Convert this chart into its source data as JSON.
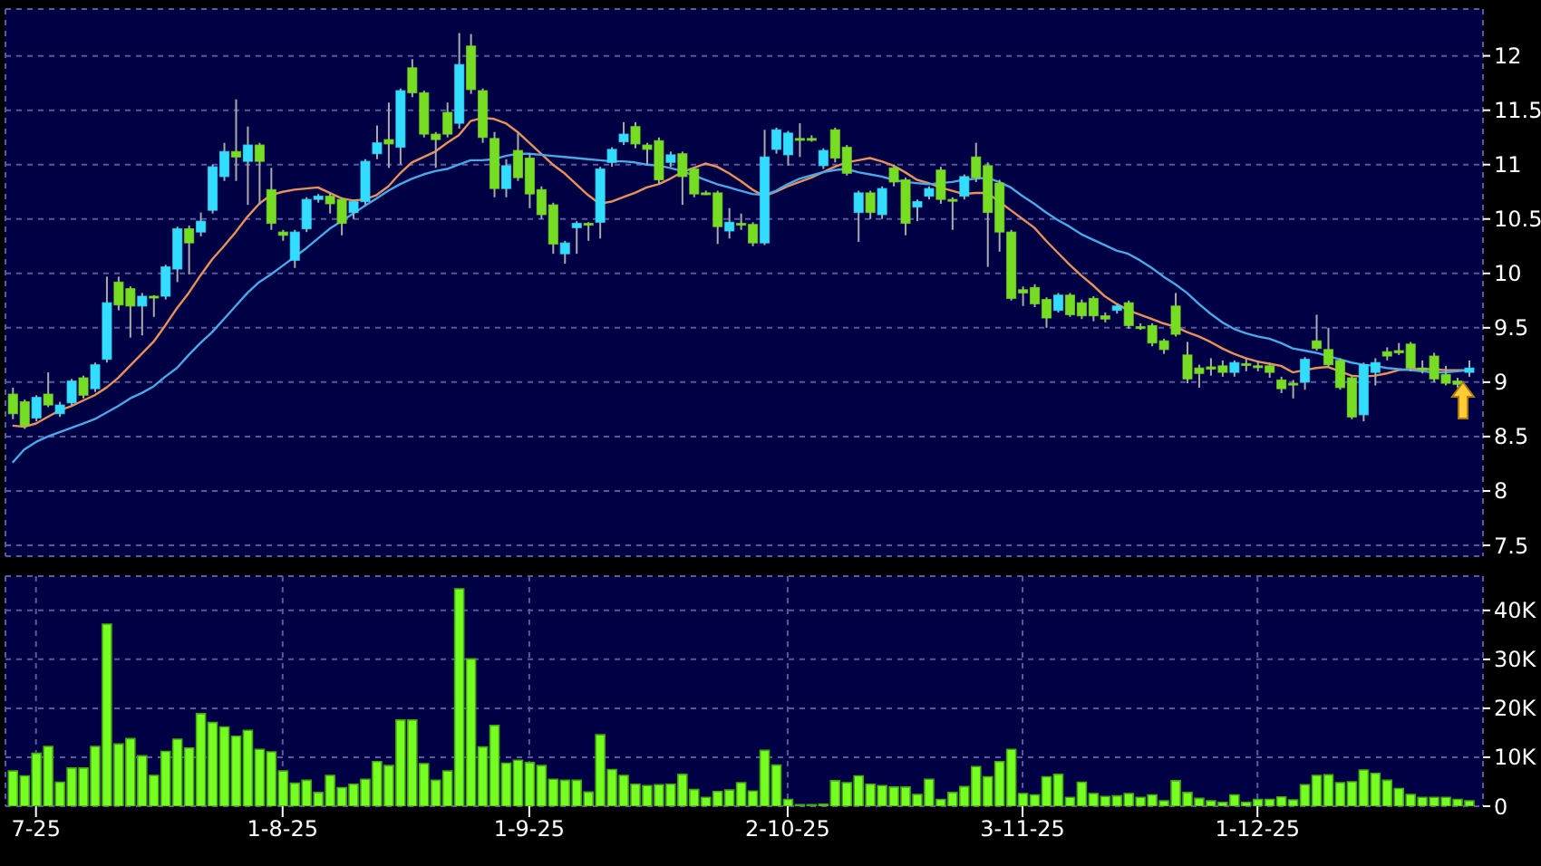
{
  "chart_data": [
    {
      "type": "candlestick",
      "categories": [
        null,
        null,
        null,
        null,
        null,
        null,
        null,
        null,
        null,
        null,
        null,
        null,
        null,
        null,
        null,
        null,
        null,
        null,
        null,
        null,
        null,
        null,
        null,
        null,
        null,
        null,
        null,
        null,
        null,
        null,
        null,
        null,
        null,
        null,
        null,
        null,
        null,
        null,
        null,
        null,
        null,
        null,
        null,
        null,
        null,
        null,
        null,
        null,
        null,
        null,
        null,
        null,
        null,
        null,
        null,
        null,
        null,
        null,
        null,
        null,
        null,
        null,
        null,
        null,
        null,
        null,
        null,
        null,
        null,
        null,
        null,
        null,
        null,
        null,
        null,
        null,
        null,
        null,
        null,
        null,
        null,
        null,
        null,
        null,
        null,
        null,
        null,
        null,
        null,
        null,
        null,
        null,
        null,
        null,
        null,
        null,
        null,
        null,
        null,
        null,
        null,
        null,
        null,
        null,
        null,
        null,
        null,
        null,
        null,
        null,
        null,
        null,
        null,
        null,
        null,
        null,
        null,
        null,
        null,
        null,
        null,
        null,
        null,
        null,
        null
      ],
      "ohlc": [
        [
          8.89,
          8.95,
          8.66,
          8.71
        ],
        [
          8.82,
          8.84,
          8.57,
          8.6
        ],
        [
          8.67,
          8.88,
          8.64,
          8.86
        ],
        [
          8.89,
          9.09,
          8.77,
          8.79
        ],
        [
          8.71,
          8.82,
          8.68,
          8.79
        ],
        [
          8.81,
          9.03,
          8.78,
          9.01
        ],
        [
          9.04,
          9.06,
          8.85,
          8.88
        ],
        [
          8.94,
          9.18,
          8.91,
          9.16
        ],
        [
          9.21,
          9.97,
          9.18,
          9.73
        ],
        [
          9.92,
          9.97,
          9.66,
          9.71
        ],
        [
          9.86,
          9.88,
          9.41,
          9.7
        ],
        [
          9.7,
          9.82,
          9.43,
          9.79
        ],
        [
          9.79,
          9.8,
          9.6,
          9.79
        ],
        [
          9.79,
          10.08,
          9.76,
          10.06
        ],
        [
          10.04,
          10.43,
          9.92,
          10.41
        ],
        [
          10.41,
          10.44,
          9.99,
          10.28
        ],
        [
          10.38,
          10.56,
          10.34,
          10.48
        ],
        [
          10.58,
          11.0,
          10.55,
          10.98
        ],
        [
          10.89,
          11.2,
          10.85,
          11.12
        ],
        [
          11.12,
          11.6,
          10.85,
          11.07
        ],
        [
          11.03,
          11.35,
          10.63,
          11.18
        ],
        [
          11.18,
          11.2,
          10.63,
          11.03
        ],
        [
          10.77,
          10.97,
          10.4,
          10.46
        ],
        [
          10.38,
          10.4,
          10.3,
          10.35
        ],
        [
          10.12,
          10.4,
          10.05,
          10.38
        ],
        [
          10.41,
          10.7,
          10.38,
          10.68
        ],
        [
          10.68,
          10.73,
          10.65,
          10.71
        ],
        [
          10.71,
          10.74,
          10.55,
          10.64
        ],
        [
          10.68,
          10.7,
          10.35,
          10.46
        ],
        [
          10.56,
          10.68,
          10.5,
          10.66
        ],
        [
          10.66,
          11.05,
          10.63,
          11.03
        ],
        [
          11.1,
          11.36,
          11.05,
          11.2
        ],
        [
          11.23,
          11.57,
          10.97,
          11.19
        ],
        [
          11.16,
          11.7,
          11.0,
          11.68
        ],
        [
          11.89,
          11.97,
          11.62,
          11.66
        ],
        [
          11.66,
          11.68,
          11.25,
          11.28
        ],
        [
          11.28,
          11.3,
          10.97,
          11.23
        ],
        [
          11.48,
          11.57,
          11.25,
          11.28
        ],
        [
          11.38,
          12.21,
          11.33,
          11.92
        ],
        [
          12.09,
          12.2,
          11.65,
          11.69
        ],
        [
          11.68,
          11.7,
          11.2,
          11.25
        ],
        [
          11.24,
          11.3,
          10.7,
          10.78
        ],
        [
          10.78,
          11.05,
          10.7,
          10.99
        ],
        [
          11.13,
          11.3,
          10.85,
          10.88
        ],
        [
          11.06,
          11.1,
          10.6,
          10.73
        ],
        [
          10.77,
          10.8,
          10.5,
          10.54
        ],
        [
          10.63,
          10.65,
          10.18,
          10.27
        ],
        [
          10.18,
          10.3,
          10.09,
          10.28
        ],
        [
          10.42,
          10.48,
          10.18,
          10.46
        ],
        [
          10.46,
          10.47,
          10.3,
          10.46
        ],
        [
          10.47,
          10.98,
          10.32,
          10.96
        ],
        [
          11.02,
          11.16,
          10.98,
          11.14
        ],
        [
          11.21,
          11.39,
          11.18,
          11.28
        ],
        [
          11.35,
          11.39,
          11.15,
          11.19
        ],
        [
          11.18,
          11.2,
          11.0,
          11.14
        ],
        [
          11.22,
          11.25,
          10.82,
          10.86
        ],
        [
          11.02,
          11.12,
          10.98,
          11.09
        ],
        [
          11.1,
          11.12,
          10.63,
          10.89
        ],
        [
          10.96,
          10.98,
          10.7,
          10.73
        ],
        [
          10.74,
          10.76,
          10.72,
          10.74
        ],
        [
          10.74,
          10.76,
          10.27,
          10.43
        ],
        [
          10.39,
          10.6,
          10.32,
          10.47
        ],
        [
          10.46,
          10.55,
          10.4,
          10.46
        ],
        [
          10.45,
          10.47,
          10.25,
          10.28
        ],
        [
          10.28,
          11.32,
          10.26,
          11.07
        ],
        [
          11.14,
          11.34,
          11.1,
          11.32
        ],
        [
          11.09,
          11.31,
          10.99,
          11.29
        ],
        [
          11.24,
          11.38,
          11.07,
          11.24
        ],
        [
          11.24,
          11.27,
          11.21,
          11.24
        ],
        [
          10.99,
          11.15,
          10.96,
          11.13
        ],
        [
          11.32,
          11.34,
          11.02,
          11.06
        ],
        [
          11.16,
          11.18,
          10.9,
          10.92
        ],
        [
          10.56,
          10.76,
          10.29,
          10.74
        ],
        [
          10.74,
          10.76,
          10.5,
          10.56
        ],
        [
          10.54,
          10.8,
          10.5,
          10.78
        ],
        [
          10.97,
          11.0,
          10.8,
          10.84
        ],
        [
          10.86,
          10.88,
          10.35,
          10.46
        ],
        [
          10.61,
          10.68,
          10.48,
          10.66
        ],
        [
          10.71,
          10.8,
          10.68,
          10.78
        ],
        [
          10.95,
          10.98,
          10.64,
          10.68
        ],
        [
          10.68,
          10.7,
          10.4,
          10.68
        ],
        [
          10.71,
          10.91,
          10.68,
          10.89
        ],
        [
          11.07,
          11.2,
          10.84,
          10.88
        ],
        [
          10.99,
          11.02,
          10.06,
          10.56
        ],
        [
          10.83,
          10.86,
          10.2,
          10.38
        ],
        [
          10.38,
          10.4,
          9.75,
          9.77
        ],
        [
          9.85,
          9.88,
          9.7,
          9.82
        ],
        [
          9.87,
          9.9,
          9.69,
          9.72
        ],
        [
          9.76,
          9.78,
          9.5,
          9.59
        ],
        [
          9.66,
          9.82,
          9.64,
          9.8
        ],
        [
          9.8,
          9.82,
          9.6,
          9.62
        ],
        [
          9.73,
          9.76,
          9.58,
          9.61
        ],
        [
          9.77,
          9.79,
          9.56,
          9.61
        ],
        [
          9.61,
          9.64,
          9.55,
          9.58
        ],
        [
          9.66,
          9.72,
          9.63,
          9.7
        ],
        [
          9.73,
          9.75,
          9.49,
          9.52
        ],
        [
          9.51,
          9.54,
          9.48,
          9.51
        ],
        [
          9.52,
          9.54,
          9.33,
          9.36
        ],
        [
          9.38,
          9.4,
          9.26,
          9.3
        ],
        [
          9.7,
          9.82,
          9.42,
          9.44
        ],
        [
          9.25,
          9.37,
          8.99,
          9.03
        ],
        [
          9.13,
          9.16,
          8.95,
          9.08
        ],
        [
          9.14,
          9.22,
          9.06,
          9.12
        ],
        [
          9.15,
          9.2,
          9.05,
          9.09
        ],
        [
          9.09,
          9.2,
          9.05,
          9.18
        ],
        [
          9.17,
          9.22,
          9.1,
          9.17
        ],
        [
          9.15,
          9.2,
          9.1,
          9.15
        ],
        [
          9.15,
          9.18,
          9.04,
          9.09
        ],
        [
          9.02,
          9.05,
          8.9,
          8.94
        ],
        [
          8.99,
          9.02,
          8.85,
          8.99
        ],
        [
          9.0,
          9.23,
          8.93,
          9.21
        ],
        [
          9.38,
          9.62,
          9.29,
          9.31
        ],
        [
          9.3,
          9.5,
          9.14,
          9.16
        ],
        [
          9.2,
          9.22,
          8.93,
          8.95
        ],
        [
          9.04,
          9.06,
          8.66,
          8.68
        ],
        [
          8.7,
          9.18,
          8.64,
          9.16
        ],
        [
          9.09,
          9.22,
          8.97,
          9.18
        ],
        [
          9.28,
          9.32,
          9.2,
          9.24
        ],
        [
          9.29,
          9.36,
          9.25,
          9.27
        ],
        [
          9.35,
          9.37,
          9.1,
          9.13
        ],
        [
          9.13,
          9.2,
          9.08,
          9.13
        ],
        [
          9.24,
          9.27,
          9.0,
          9.03
        ],
        [
          9.07,
          9.15,
          8.97,
          8.99
        ],
        [
          9.01,
          9.04,
          8.95,
          8.98
        ],
        [
          9.09,
          9.2,
          9.05,
          9.13
        ]
      ],
      "colors": [
        "#77dd22",
        "#77dd22",
        "#33ddff",
        "#77dd22",
        "#33ddff",
        "#33ddff",
        "#77dd22",
        "#33ddff",
        "#33ddff",
        "#77dd22",
        "#77dd22",
        "#33ddff",
        "#77dd22",
        "#33ddff",
        "#33ddff",
        "#77dd22",
        "#33ddff",
        "#33ddff",
        "#33ddff",
        "#77dd22",
        "#33ddff",
        "#77dd22",
        "#77dd22",
        "#77dd22",
        "#33ddff",
        "#33ddff",
        "#33ddff",
        "#77dd22",
        "#77dd22",
        "#33ddff",
        "#33ddff",
        "#33ddff",
        "#77dd22",
        "#33ddff",
        "#77dd22",
        "#77dd22",
        "#77dd22",
        "#77dd22",
        "#33ddff",
        "#77dd22",
        "#77dd22",
        "#77dd22",
        "#33ddff",
        "#77dd22",
        "#77dd22",
        "#77dd22",
        "#77dd22",
        "#33ddff",
        "#33ddff",
        "#77dd22",
        "#33ddff",
        "#33ddff",
        "#33ddff",
        "#77dd22",
        "#77dd22",
        "#77dd22",
        "#33ddff",
        "#77dd22",
        "#77dd22",
        "#77dd22",
        "#77dd22",
        "#33ddff",
        "#77dd22",
        "#77dd22",
        "#33ddff",
        "#33ddff",
        "#33ddff",
        "#77dd22",
        "#77dd22",
        "#33ddff",
        "#77dd22",
        "#77dd22",
        "#33ddff",
        "#77dd22",
        "#33ddff",
        "#77dd22",
        "#77dd22",
        "#33ddff",
        "#33ddff",
        "#77dd22",
        "#77dd22",
        "#33ddff",
        "#77dd22",
        "#77dd22",
        "#77dd22",
        "#77dd22",
        "#77dd22",
        "#77dd22",
        "#77dd22",
        "#33ddff",
        "#77dd22",
        "#77dd22",
        "#77dd22",
        "#77dd22",
        "#33ddff",
        "#77dd22",
        "#77dd22",
        "#77dd22",
        "#77dd22",
        "#77dd22",
        "#77dd22",
        "#77dd22",
        "#77dd22",
        "#77dd22",
        "#33ddff",
        "#77dd22",
        "#77dd22",
        "#77dd22",
        "#77dd22",
        "#77dd22",
        "#33ddff",
        "#77dd22",
        "#77dd22",
        "#77dd22",
        "#77dd22",
        "#33ddff",
        "#33ddff",
        "#77dd22",
        "#77dd22",
        "#77dd22",
        "#77dd22",
        "#77dd22",
        "#77dd22",
        "#77dd22",
        "#33ddff"
      ],
      "series": [
        {
          "type": "line",
          "color": "#e8915a",
          "values": [
            8.6,
            8.59,
            8.62,
            8.68,
            8.74,
            8.78,
            8.83,
            8.88,
            8.95,
            9.04,
            9.15,
            9.26,
            9.37,
            9.52,
            9.68,
            9.82,
            9.98,
            10.13,
            10.25,
            10.38,
            10.52,
            10.64,
            10.72,
            10.75,
            10.77,
            10.78,
            10.79,
            10.74,
            10.69,
            10.67,
            10.68,
            10.72,
            10.8,
            10.92,
            11.02,
            11.07,
            11.12,
            11.2,
            11.27,
            11.4,
            11.43,
            11.42,
            11.38,
            11.3,
            11.2,
            11.1,
            11.0,
            10.92,
            10.82,
            10.72,
            10.64,
            10.66,
            10.7,
            10.74,
            10.79,
            10.82,
            10.87,
            10.93,
            10.97,
            11.01,
            10.98,
            10.92,
            10.85,
            10.77,
            10.71,
            10.75,
            10.8,
            10.84,
            10.88,
            10.93,
            10.98,
            11.02,
            11.04,
            11.06,
            11.03,
            10.99,
            10.93,
            10.86,
            10.83,
            10.79,
            10.76,
            10.73,
            10.74,
            10.74,
            10.66,
            10.58,
            10.5,
            10.42,
            10.3,
            10.19,
            10.08,
            9.98,
            9.89,
            9.79,
            9.72,
            9.66,
            9.62,
            9.58,
            9.54,
            9.51,
            9.46,
            9.42,
            9.37,
            9.31,
            9.26,
            9.22,
            9.19,
            9.17,
            9.15,
            9.09,
            9.11,
            9.13,
            9.14,
            9.1,
            9.06,
            9.05,
            9.06,
            9.08,
            9.11,
            9.12,
            9.12,
            9.12,
            9.11,
            9.11,
            9.11
          ]
        },
        {
          "type": "line",
          "color": "#4aa8e8",
          "values": [
            8.26,
            8.38,
            8.45,
            8.5,
            8.54,
            8.58,
            8.62,
            8.66,
            8.72,
            8.78,
            8.85,
            8.9,
            8.96,
            9.05,
            9.13,
            9.25,
            9.36,
            9.46,
            9.58,
            9.7,
            9.82,
            9.92,
            9.99,
            10.07,
            10.15,
            10.23,
            10.32,
            10.41,
            10.48,
            10.55,
            10.62,
            10.69,
            10.76,
            10.82,
            10.87,
            10.91,
            10.94,
            10.96,
            11.0,
            11.04,
            11.04,
            11.05,
            11.08,
            11.1,
            11.1,
            11.09,
            11.08,
            11.07,
            11.06,
            11.05,
            11.04,
            11.03,
            11.03,
            11.02,
            11.0,
            10.99,
            10.97,
            10.94,
            10.9,
            10.86,
            10.82,
            10.79,
            10.76,
            10.73,
            10.72,
            10.76,
            10.82,
            10.87,
            10.9,
            10.93,
            10.95,
            10.96,
            10.93,
            10.91,
            10.89,
            10.86,
            10.84,
            10.83,
            10.82,
            10.83,
            10.84,
            10.86,
            10.87,
            10.88,
            10.84,
            10.79,
            10.71,
            10.64,
            10.56,
            10.49,
            10.43,
            10.36,
            10.31,
            10.26,
            10.21,
            10.18,
            10.12,
            10.05,
            9.97,
            9.9,
            9.82,
            9.72,
            9.63,
            9.55,
            9.49,
            9.45,
            9.42,
            9.4,
            9.36,
            9.31,
            9.29,
            9.27,
            9.24,
            9.21,
            9.18,
            9.16,
            9.15,
            9.13,
            9.12,
            9.11,
            9.1,
            9.09,
            9.09,
            9.1,
            9.11
          ]
        }
      ],
      "ylim": [
        7.4,
        12.43
      ],
      "yticks": [
        7.5,
        8,
        8.5,
        9,
        9.5,
        10,
        10.5,
        11,
        11.5,
        12
      ],
      "grid": true,
      "tick_labels": "y"
    },
    {
      "type": "bar",
      "color": "#77ff22",
      "categories": [
        null,
        null,
        "7-25",
        null,
        null,
        null,
        null,
        null,
        null,
        null,
        null,
        null,
        null,
        null,
        null,
        null,
        null,
        null,
        null,
        null,
        null,
        null,
        null,
        "1-8-25",
        null,
        null,
        null,
        null,
        null,
        null,
        null,
        null,
        null,
        null,
        null,
        null,
        null,
        null,
        null,
        null,
        null,
        null,
        null,
        null,
        "1-9-25",
        null,
        null,
        null,
        null,
        null,
        null,
        null,
        null,
        null,
        null,
        null,
        null,
        null,
        null,
        null,
        null,
        null,
        null,
        null,
        null,
        null,
        "2-10-25",
        null,
        null,
        null,
        null,
        null,
        null,
        null,
        null,
        null,
        null,
        null,
        null,
        null,
        null,
        null,
        null,
        null,
        null,
        null,
        "3-11-25",
        null,
        null,
        null,
        null,
        null,
        null,
        null,
        null,
        null,
        null,
        null,
        null,
        null,
        null,
        null,
        null,
        null,
        null,
        null,
        "1-12-25",
        null,
        null,
        null,
        null,
        null,
        null,
        null,
        null,
        null,
        null,
        null,
        null,
        null,
        null,
        null,
        null,
        null,
        null
      ],
      "values": [
        7200,
        6200,
        10800,
        12200,
        4900,
        7800,
        7800,
        12200,
        37200,
        12700,
        13800,
        10300,
        6300,
        11200,
        13700,
        11900,
        18900,
        17100,
        16200,
        14300,
        15500,
        11600,
        11100,
        7200,
        4700,
        5300,
        2800,
        6300,
        3800,
        4500,
        5500,
        9100,
        8300,
        17600,
        17600,
        8700,
        5300,
        7200,
        44400,
        30100,
        12100,
        16500,
        8800,
        9400,
        8900,
        8300,
        5500,
        5300,
        5300,
        2900,
        14600,
        7500,
        6300,
        4500,
        4200,
        4400,
        4500,
        6500,
        3400,
        1800,
        3000,
        3300,
        4800,
        3100,
        11400,
        8400,
        1400,
        300,
        300,
        400,
        5200,
        4800,
        6200,
        4500,
        4200,
        3900,
        3900,
        2400,
        5500,
        1400,
        2800,
        4000,
        8100,
        6000,
        9100,
        11600,
        2600,
        2300,
        6000,
        6500,
        1800,
        4900,
        2600,
        2000,
        2100,
        2600,
        1800,
        2300,
        1100,
        5200,
        2800,
        1600,
        1100,
        800,
        2300,
        800,
        1400,
        1400,
        1900,
        1300,
        4400,
        6300,
        6400,
        4800,
        5000,
        7400,
        6700,
        5300,
        3600,
        2400,
        1800,
        1800,
        1800,
        1400,
        1100
      ],
      "ylim": [
        0,
        47000
      ],
      "yticks": [
        0,
        {
          "value": 10000,
          "label": "10K"
        },
        {
          "value": 20000,
          "label": "20K"
        },
        {
          "value": 30000,
          "label": "30K"
        },
        {
          "value": 40000,
          "label": "40K"
        }
      ],
      "grid": true
    }
  ]
}
